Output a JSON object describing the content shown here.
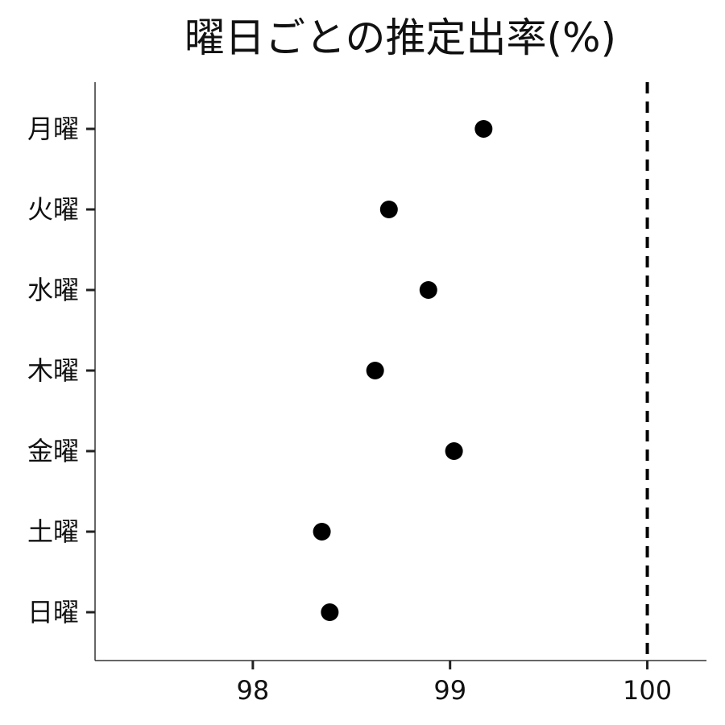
{
  "chart_data": {
    "type": "scatter",
    "title": "曜日ごとの推定出率(%)",
    "xlabel": "",
    "ylabel": "",
    "categories": [
      "月曜",
      "火曜",
      "水曜",
      "木曜",
      "金曜",
      "土曜",
      "日曜"
    ],
    "values": [
      99.17,
      98.69,
      98.89,
      98.62,
      99.02,
      98.35,
      98.39
    ],
    "xlim": [
      97.2,
      100.3
    ],
    "xticks": [
      98,
      99,
      100
    ],
    "xtick_labels": [
      "98",
      "99",
      "100"
    ],
    "reference_line": {
      "x": 100,
      "style": "dashed"
    },
    "grid": false,
    "legend": "none",
    "point_color": "#000000"
  }
}
